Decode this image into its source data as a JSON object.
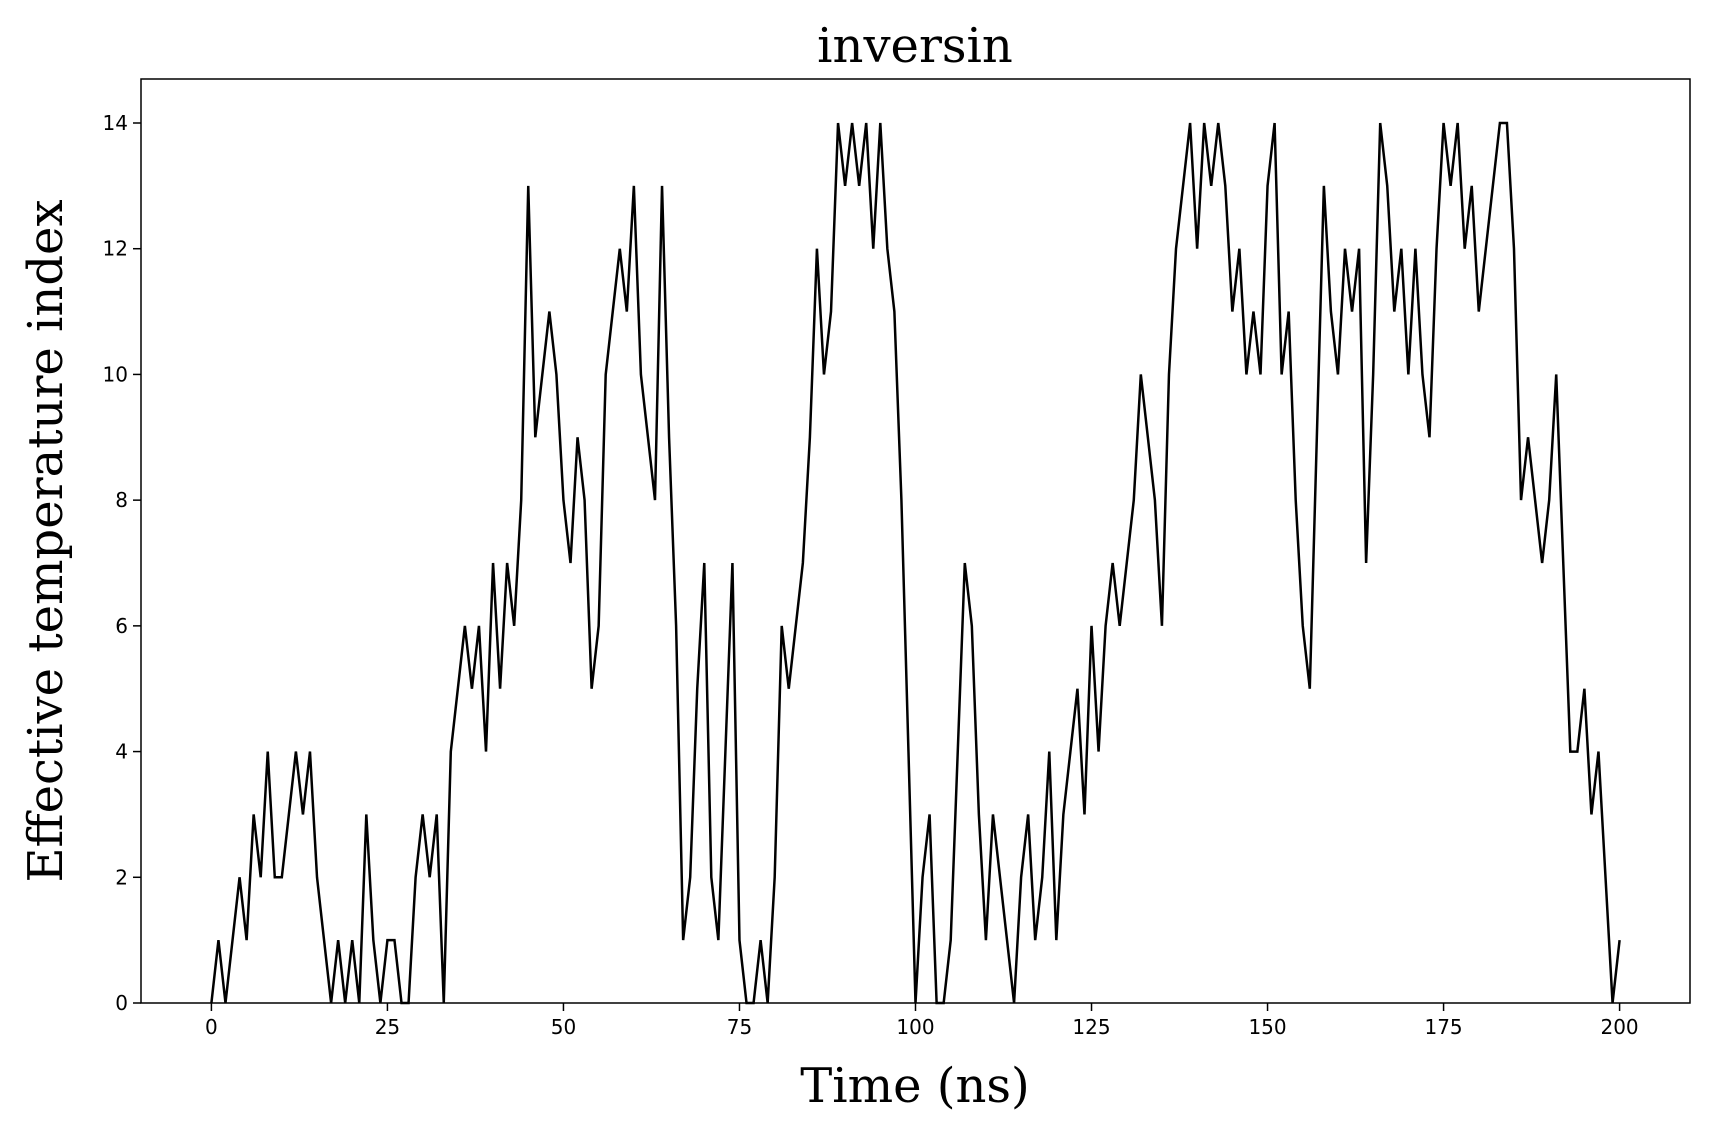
{
  "chart_data": {
    "type": "line",
    "title": "inversin",
    "xlabel": "Time (ns)",
    "ylabel": "Effective temperature index",
    "x": [
      0,
      1,
      2,
      3,
      4,
      5,
      6,
      7,
      8,
      9,
      10,
      11,
      12,
      13,
      14,
      15,
      16,
      17,
      18,
      19,
      20,
      21,
      22,
      23,
      24,
      25,
      26,
      27,
      28,
      29,
      30,
      31,
      32,
      33,
      34,
      35,
      36,
      37,
      38,
      39,
      40,
      41,
      42,
      43,
      44,
      45,
      46,
      47,
      48,
      49,
      50,
      51,
      52,
      53,
      54,
      55,
      56,
      57,
      58,
      59,
      60,
      61,
      62,
      63,
      64,
      65,
      66,
      67,
      68,
      69,
      70,
      71,
      72,
      73,
      74,
      75,
      76,
      77,
      78,
      79,
      80,
      81,
      82,
      83,
      84,
      85,
      86,
      87,
      88,
      89,
      90,
      91,
      92,
      93,
      94,
      95,
      96,
      97,
      98,
      99,
      100,
      101,
      102,
      103,
      104,
      105,
      106,
      107,
      108,
      109,
      110,
      111,
      112,
      113,
      114,
      115,
      116,
      117,
      118,
      119,
      120,
      121,
      122,
      123,
      124,
      125,
      126,
      127,
      128,
      129,
      130,
      131,
      132,
      133,
      134,
      135,
      136,
      137,
      138,
      139,
      140,
      141,
      142,
      143,
      144,
      145,
      146,
      147,
      148,
      149,
      150,
      151,
      152,
      153,
      154,
      155,
      156,
      157,
      158,
      159,
      160,
      161,
      162,
      163,
      164,
      165,
      166,
      167,
      168,
      169,
      170,
      171,
      172,
      173,
      174,
      175,
      176,
      177,
      178,
      179,
      180,
      181,
      182,
      183,
      184,
      185,
      186,
      187,
      188,
      189,
      190,
      191,
      192,
      193,
      194,
      195,
      196,
      197,
      198,
      199,
      200
    ],
    "series": [
      {
        "name": "inversin",
        "color": "#000000",
        "values": [
          0,
          1,
          0,
          1,
          2,
          1,
          3,
          2,
          4,
          2,
          2,
          3,
          4,
          3,
          4,
          2,
          1,
          0,
          1,
          0,
          1,
          0,
          3,
          1,
          0,
          1,
          1,
          0,
          0,
          2,
          3,
          2,
          3,
          0,
          4,
          5,
          6,
          5,
          6,
          4,
          7,
          5,
          7,
          6,
          8,
          13,
          9,
          10,
          11,
          10,
          8,
          7,
          9,
          8,
          5,
          6,
          10,
          11,
          12,
          11,
          13,
          10,
          9,
          8,
          13,
          9,
          6,
          1,
          2,
          5,
          7,
          2,
          1,
          4,
          7,
          1,
          0,
          0,
          1,
          0,
          2,
          6,
          5,
          6,
          7,
          9,
          12,
          10,
          11,
          14,
          13,
          14,
          13,
          14,
          12,
          14,
          12,
          11,
          8,
          4,
          0,
          2,
          3,
          0,
          0,
          1,
          4,
          7,
          6,
          3,
          1,
          3,
          2,
          1,
          0,
          2,
          3,
          1,
          2,
          4,
          1,
          3,
          4,
          5,
          3,
          6,
          4,
          6,
          7,
          6,
          7,
          8,
          10,
          9,
          8,
          6,
          10,
          12,
          13,
          14,
          12,
          14,
          13,
          14,
          13,
          11,
          12,
          10,
          11,
          10,
          13,
          14,
          10,
          11,
          8,
          6,
          5,
          9,
          13,
          11,
          10,
          12,
          11,
          12,
          7,
          10,
          14,
          13,
          11,
          12,
          10,
          12,
          10,
          9,
          12,
          14,
          13,
          14,
          12,
          13,
          11,
          12,
          13,
          14,
          14,
          12,
          8,
          9,
          8,
          7,
          8,
          10,
          7,
          4,
          4,
          5,
          3,
          4,
          2,
          0,
          1
        ]
      }
    ],
    "xlim": [
      -10,
      210
    ],
    "ylim": [
      0,
      14.7
    ],
    "xticks": [
      0,
      25,
      50,
      75,
      100,
      125,
      150,
      175,
      200
    ],
    "yticks": [
      0,
      2,
      4,
      6,
      8,
      10,
      12,
      14
    ]
  }
}
